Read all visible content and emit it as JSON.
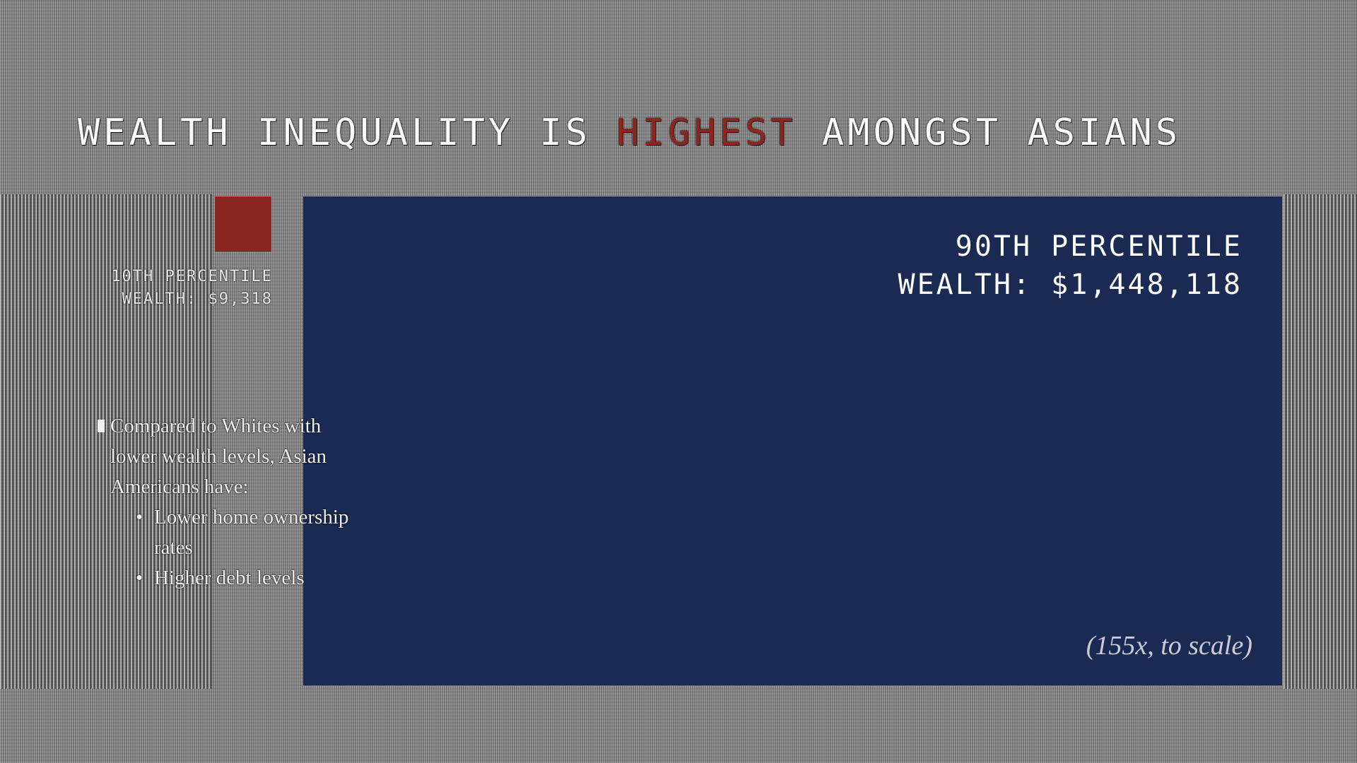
{
  "slide": {
    "title_before": "WEALTH INEQUALITY IS ",
    "title_highlight": "HIGHEST",
    "title_after": " AMONGST ASIANS",
    "colors": {
      "accent": "#8b2720",
      "panel": "#1b2a52"
    }
  },
  "legend": {
    "label_line1": "10TH PERCENTILE",
    "label_line2": "WEALTH: $9,318"
  },
  "panel": {
    "label_line1": "90TH PERCENTILE",
    "label_line2": "WEALTH: $1,448,118",
    "scale_note": "(155x, to scale)"
  },
  "bullets": {
    "intro": "Compared to Whites with lower wealth levels, Asian Americans have:",
    "items": [
      "Lower home ownership rates",
      "Higher debt levels"
    ]
  }
}
